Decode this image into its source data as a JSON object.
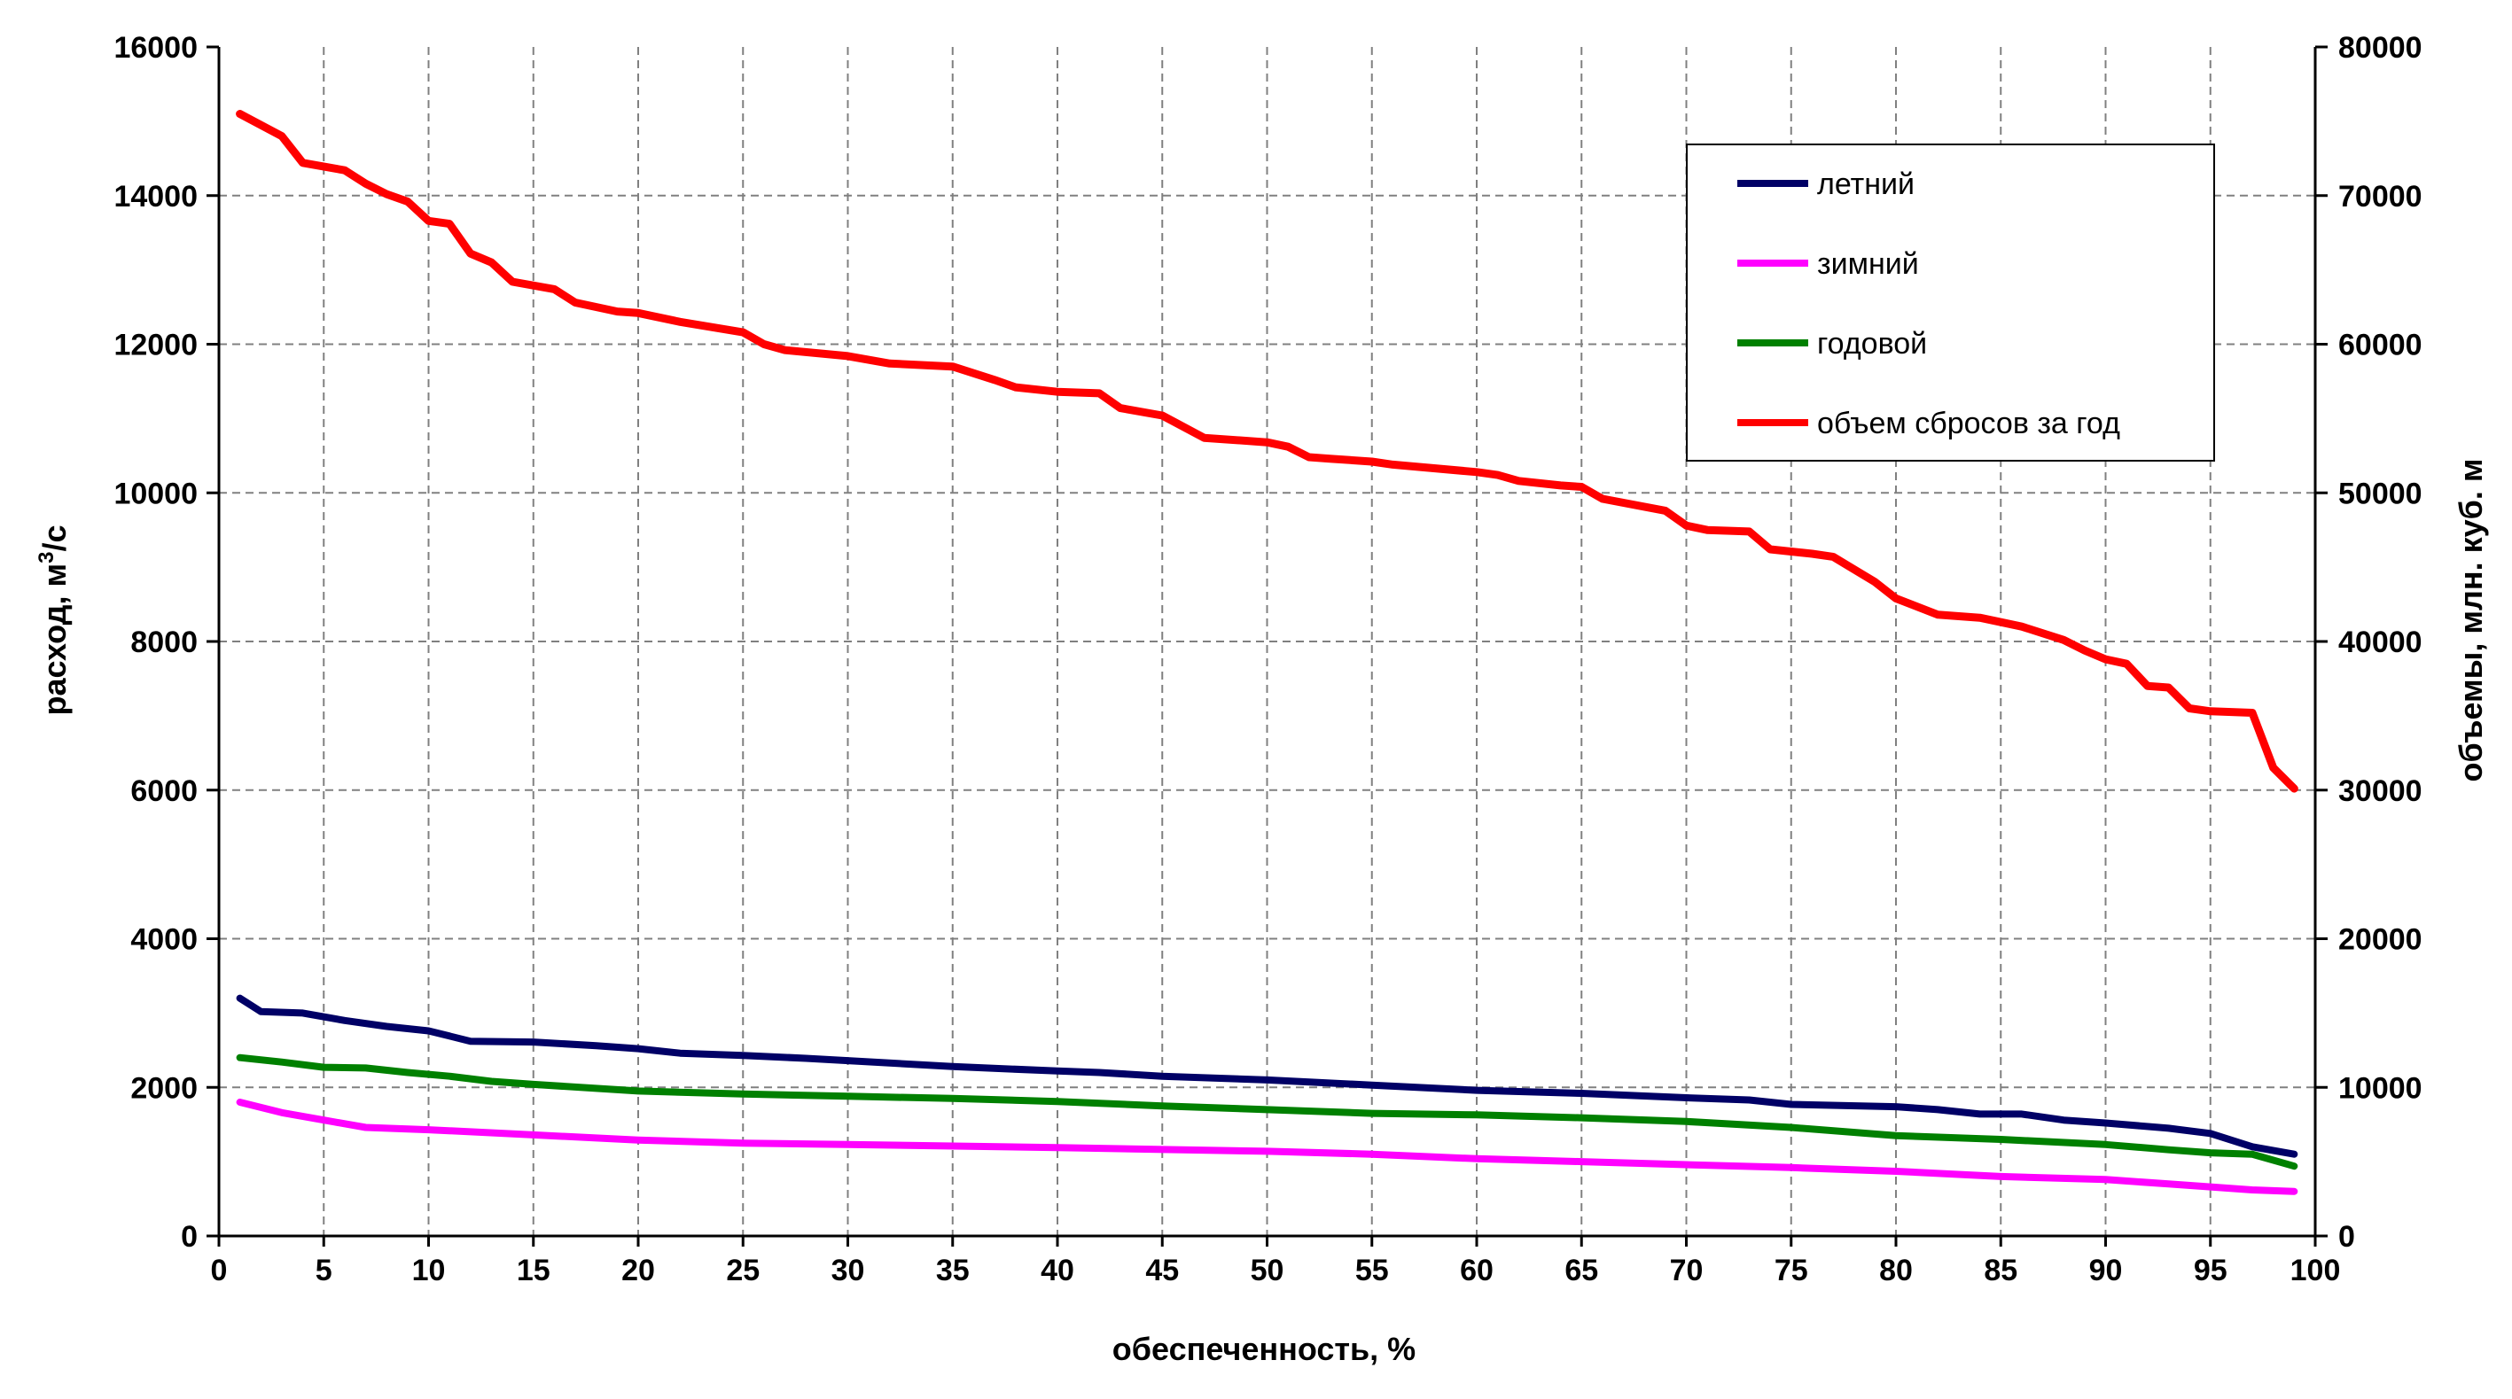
{
  "chart_data": {
    "type": "line",
    "xlabel": "обеспеченность, %",
    "ylabel_left_base": "расход, м",
    "ylabel_left_sup": "3",
    "ylabel_left_tail": "/с",
    "ylabel_right": "объемы, млн. куб. м",
    "xlim": [
      0,
      100
    ],
    "ylim_left": [
      0,
      16000
    ],
    "ylim_right": [
      0,
      80000
    ],
    "x_ticks": [
      "0",
      "5",
      "10",
      "15",
      "20",
      "25",
      "30",
      "35",
      "40",
      "45",
      "50",
      "55",
      "60",
      "65",
      "70",
      "75",
      "80",
      "85",
      "90",
      "95",
      "100"
    ],
    "y_left_ticks": [
      "0",
      "2000",
      "4000",
      "6000",
      "8000",
      "10000",
      "12000",
      "14000",
      "16000"
    ],
    "y_right_ticks": [
      "0",
      "10000",
      "20000",
      "30000",
      "40000",
      "50000",
      "60000",
      "70000",
      "80000"
    ],
    "grid": true,
    "legend_position": "top-right",
    "series": [
      {
        "name": "летний",
        "axis": "left",
        "color": "#000066",
        "points": [
          [
            1,
            3200
          ],
          [
            2,
            3020
          ],
          [
            4,
            3000
          ],
          [
            6,
            2900
          ],
          [
            8,
            2820
          ],
          [
            10,
            2760
          ],
          [
            12,
            2620
          ],
          [
            15,
            2610
          ],
          [
            18,
            2560
          ],
          [
            20,
            2520
          ],
          [
            22,
            2460
          ],
          [
            25,
            2430
          ],
          [
            28,
            2390
          ],
          [
            30,
            2360
          ],
          [
            35,
            2280
          ],
          [
            40,
            2220
          ],
          [
            42,
            2200
          ],
          [
            45,
            2150
          ],
          [
            50,
            2100
          ],
          [
            55,
            2030
          ],
          [
            60,
            1960
          ],
          [
            65,
            1920
          ],
          [
            70,
            1860
          ],
          [
            73,
            1830
          ],
          [
            75,
            1770
          ],
          [
            80,
            1740
          ],
          [
            82,
            1700
          ],
          [
            84,
            1640
          ],
          [
            86,
            1640
          ],
          [
            88,
            1560
          ],
          [
            90,
            1520
          ],
          [
            93,
            1450
          ],
          [
            95,
            1380
          ],
          [
            97,
            1200
          ],
          [
            99,
            1100
          ]
        ]
      },
      {
        "name": "зимний",
        "axis": "left",
        "color": "#ff00ff",
        "points": [
          [
            1,
            1800
          ],
          [
            3,
            1660
          ],
          [
            5,
            1560
          ],
          [
            7,
            1460
          ],
          [
            10,
            1430
          ],
          [
            15,
            1360
          ],
          [
            20,
            1290
          ],
          [
            25,
            1250
          ],
          [
            30,
            1230
          ],
          [
            40,
            1190
          ],
          [
            50,
            1140
          ],
          [
            55,
            1100
          ],
          [
            60,
            1040
          ],
          [
            65,
            1000
          ],
          [
            70,
            960
          ],
          [
            75,
            920
          ],
          [
            80,
            870
          ],
          [
            85,
            800
          ],
          [
            90,
            760
          ],
          [
            93,
            700
          ],
          [
            95,
            660
          ],
          [
            97,
            620
          ],
          [
            99,
            600
          ]
        ]
      },
      {
        "name": "годовой",
        "axis": "left",
        "color": "#008000",
        "points": [
          [
            1,
            2400
          ],
          [
            3,
            2340
          ],
          [
            5,
            2270
          ],
          [
            7,
            2260
          ],
          [
            9,
            2200
          ],
          [
            11,
            2150
          ],
          [
            13,
            2080
          ],
          [
            15,
            2040
          ],
          [
            20,
            1950
          ],
          [
            25,
            1910
          ],
          [
            30,
            1880
          ],
          [
            35,
            1850
          ],
          [
            40,
            1810
          ],
          [
            45,
            1750
          ],
          [
            50,
            1700
          ],
          [
            55,
            1650
          ],
          [
            60,
            1630
          ],
          [
            65,
            1590
          ],
          [
            70,
            1540
          ],
          [
            75,
            1460
          ],
          [
            80,
            1350
          ],
          [
            85,
            1300
          ],
          [
            90,
            1230
          ],
          [
            93,
            1160
          ],
          [
            95,
            1120
          ],
          [
            97,
            1100
          ],
          [
            99,
            940
          ]
        ]
      },
      {
        "name": "объем сбросов за год",
        "axis": "right",
        "color": "#ff0000",
        "points": [
          [
            1,
            75500
          ],
          [
            3,
            74000
          ],
          [
            4,
            72200
          ],
          [
            6,
            71700
          ],
          [
            7,
            70800
          ],
          [
            8,
            70100
          ],
          [
            9,
            69600
          ],
          [
            10,
            68300
          ],
          [
            11,
            68100
          ],
          [
            12,
            66100
          ],
          [
            13,
            65500
          ],
          [
            14,
            64200
          ],
          [
            16,
            63700
          ],
          [
            17,
            62800
          ],
          [
            19,
            62200
          ],
          [
            20,
            62100
          ],
          [
            22,
            61500
          ],
          [
            25,
            60800
          ],
          [
            26,
            60000
          ],
          [
            27,
            59600
          ],
          [
            30,
            59200
          ],
          [
            32,
            58700
          ],
          [
            35,
            58500
          ],
          [
            37,
            57600
          ],
          [
            38,
            57100
          ],
          [
            40,
            56800
          ],
          [
            42,
            56700
          ],
          [
            43,
            55700
          ],
          [
            45,
            55200
          ],
          [
            47,
            53700
          ],
          [
            50,
            53400
          ],
          [
            51,
            53100
          ],
          [
            52,
            52400
          ],
          [
            53,
            52300
          ],
          [
            55,
            52100
          ],
          [
            56,
            51900
          ],
          [
            60,
            51400
          ],
          [
            61,
            51200
          ],
          [
            62,
            50800
          ],
          [
            64,
            50500
          ],
          [
            65,
            50400
          ],
          [
            66,
            49600
          ],
          [
            69,
            48800
          ],
          [
            70,
            47800
          ],
          [
            71,
            47500
          ],
          [
            73,
            47400
          ],
          [
            74,
            46200
          ],
          [
            76,
            45900
          ],
          [
            77,
            45700
          ],
          [
            79,
            44000
          ],
          [
            80,
            42900
          ],
          [
            82,
            41800
          ],
          [
            84,
            41600
          ],
          [
            85,
            41300
          ],
          [
            86,
            41000
          ],
          [
            88,
            40100
          ],
          [
            89,
            39400
          ],
          [
            90,
            38800
          ],
          [
            91,
            38500
          ],
          [
            92,
            37000
          ],
          [
            93,
            36900
          ],
          [
            94,
            35500
          ],
          [
            95,
            35300
          ],
          [
            97,
            35200
          ],
          [
            98,
            31500
          ],
          [
            99,
            30100
          ]
        ]
      }
    ]
  }
}
